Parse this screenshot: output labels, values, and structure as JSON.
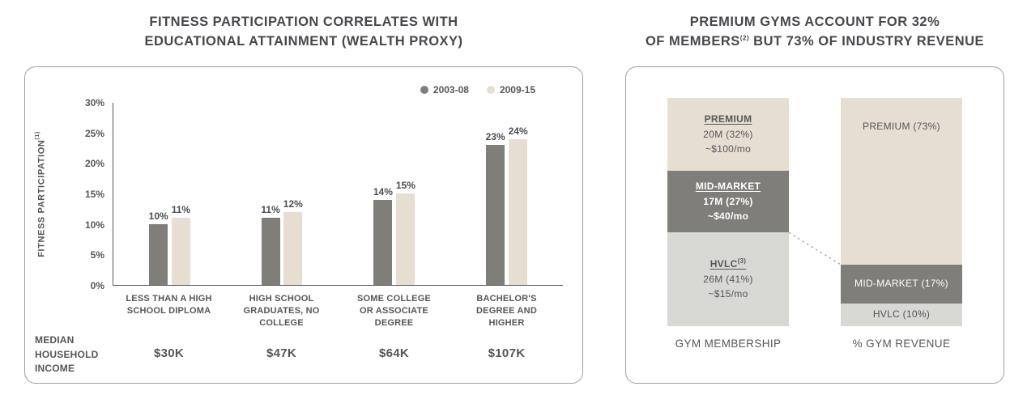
{
  "left_panel": {
    "title_line1": "FITNESS PARTICIPATION CORRELATES WITH",
    "title_line2": "EDUCATIONAL ATTAINMENT (WEALTH PROXY)",
    "income_axis_label": "MEDIAN HOUSEHOLD INCOME"
  },
  "right_panel": {
    "title_line1": "PREMIUM GYMS ACCOUNT FOR 32%",
    "title_line2_pre": "OF MEMBERS",
    "title_line2_sup": "(2)",
    "title_line2_post": " BUT 73% OF INDUSTRY REVENUE"
  },
  "colors": {
    "series_2003_08": "#7f7e7a",
    "series_2009_15": "#e6dfd1",
    "hvlc_gray": "#d8d8d5",
    "text": "#55565a",
    "axis": "#56575b",
    "box_border": "#9f9f9d",
    "connector": "#a6a6a4"
  },
  "chart_data": [
    {
      "type": "bar",
      "title": "FITNESS PARTICIPATION CORRELATES WITH EDUCATIONAL ATTAINMENT (WEALTH PROXY)",
      "ylabel": "FITNESS PARTICIPATION",
      "ylabel_superscript": "(1)",
      "xlabel": "",
      "ylim": [
        0,
        30
      ],
      "y_ticks": [
        0,
        5,
        10,
        15,
        20,
        25,
        30
      ],
      "grid": false,
      "legend_position": "top-right",
      "categories": [
        "LESS THAN A HIGH SCHOOL DIPLOMA",
        "HIGH SCHOOL GRADUATES, NO COLLEGE",
        "SOME COLLEGE OR ASSOCIATE DEGREE",
        "BACHELOR'S DEGREE AND HIGHER"
      ],
      "series": [
        {
          "name": "2003-08",
          "color": "#7f7e7a",
          "values": [
            10,
            11,
            14,
            23
          ]
        },
        {
          "name": "2009-15",
          "color": "#e6dfd1",
          "values": [
            11,
            12,
            15,
            24
          ]
        }
      ],
      "median_household_income": [
        "$30K",
        "$47K",
        "$64K",
        "$107K"
      ]
    },
    {
      "type": "bar",
      "subtype": "stacked-100-percent",
      "title": "PREMIUM GYMS ACCOUNT FOR 32% OF MEMBERS(2) BUT 73% OF INDUSTRY REVENUE",
      "columns": [
        {
          "axis_label": "GYM MEMBERSHIP",
          "segments": [
            {
              "id": "membership-premium",
              "label": "PREMIUM",
              "sup": "",
              "sublines": [
                "20M (32%)",
                "~$100/mo"
              ],
              "pct": 32,
              "bg": "#e6dfd1",
              "color": "#55565a",
              "underline": true,
              "bold": false,
              "align": "center"
            },
            {
              "id": "membership-mid-market",
              "label": "MID-MARKET",
              "sup": "",
              "sublines": [
                "17M (27%)",
                "~$40/mo"
              ],
              "pct": 27,
              "bg": "#7f7e7a",
              "color": "#ffffff",
              "underline": true,
              "bold": true,
              "align": "center"
            },
            {
              "id": "membership-hvlc",
              "label": "HVLC",
              "sup": "(3)",
              "sublines": [
                "26M (41%)",
                "~$15/mo"
              ],
              "pct": 41,
              "bg": "#d8d8d5",
              "color": "#55565a",
              "underline": true,
              "bold": false,
              "align": "center"
            }
          ]
        },
        {
          "axis_label": "% GYM REVENUE",
          "segments": [
            {
              "id": "revenue-premium",
              "label": "PREMIUM (73%)",
              "sup": "",
              "sublines": [],
              "pct": 73,
              "bg": "#e6dfd1",
              "color": "#55565a",
              "underline": false,
              "bold": false,
              "align": "top"
            },
            {
              "id": "revenue-mid-market",
              "label": "MID-MARKET (17%)",
              "sup": "",
              "sublines": [],
              "pct": 17,
              "bg": "#7f7e7a",
              "color": "#ffffff",
              "underline": false,
              "bold": true,
              "align": "center"
            },
            {
              "id": "revenue-hvlc",
              "label": "HVLC (10%)",
              "sup": "",
              "sublines": [],
              "pct": 10,
              "bg": "#d8d8d5",
              "color": "#55565a",
              "underline": false,
              "bold": false,
              "align": "center"
            }
          ]
        }
      ]
    }
  ]
}
